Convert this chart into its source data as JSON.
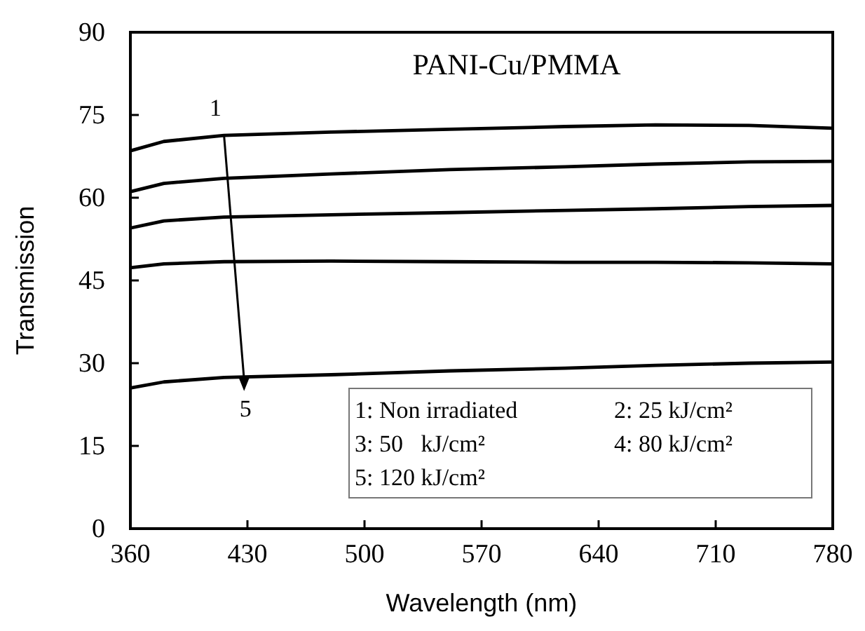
{
  "chart_data": {
    "type": "line",
    "title": "PANI-Cu/PMMA",
    "xlabel": "Wavelength (nm)",
    "ylabel": "Transmission",
    "x": [
      360,
      380,
      416,
      480,
      551,
      620,
      674,
      730,
      780
    ],
    "series": [
      {
        "color": "#000000",
        "values": [
          68.5,
          70.2,
          71.3,
          71.9,
          72.4,
          72.9,
          73.2,
          73.1,
          72.6
        ]
      },
      {
        "color": "#000000",
        "values": [
          61.1,
          62.6,
          63.5,
          64.3,
          65.1,
          65.6,
          66.1,
          66.5,
          66.6
        ]
      },
      {
        "color": "#000000",
        "values": [
          54.5,
          55.8,
          56.5,
          56.9,
          57.3,
          57.7,
          58.0,
          58.4,
          58.6
        ]
      },
      {
        "color": "#000000",
        "values": [
          47.3,
          48.0,
          48.4,
          48.5,
          48.4,
          48.3,
          48.3,
          48.2,
          48.0
        ]
      },
      {
        "color": "#000000",
        "values": [
          25.5,
          26.6,
          27.4,
          27.9,
          28.6,
          29.1,
          29.6,
          30.0,
          30.2
        ]
      }
    ],
    "xlim": [
      360,
      780
    ],
    "xticks": [
      360,
      430,
      500,
      570,
      640,
      710,
      780
    ],
    "ylim": [
      0,
      90
    ],
    "yticks": [
      0,
      15,
      30,
      45,
      60,
      75,
      90
    ],
    "marker": "none",
    "line_style": "solid",
    "annotations": [
      {
        "text": "1",
        "x": 416,
        "y": 71.3
      },
      {
        "text": "5",
        "x": 428,
        "y": 27.5
      },
      "1: Non irradiated",
      "2: 25 kJ/cm²",
      "3: 50   kJ/cm²",
      "4: 80 kJ/cm²",
      "5: 120 kJ/cm²"
    ]
  }
}
